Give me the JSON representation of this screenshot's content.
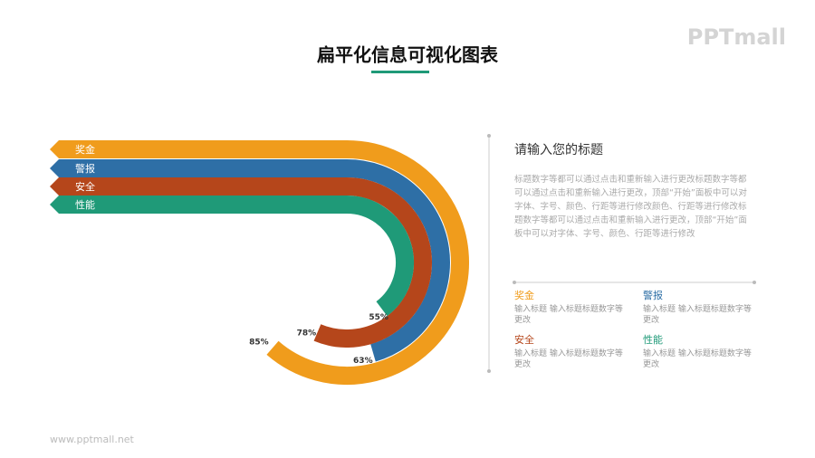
{
  "header": {
    "title": "扁平化信息可视化图表",
    "logo": "PPTmall"
  },
  "chart_data": {
    "type": "radial_bar",
    "categories": [
      "奖金",
      "警报",
      "安全",
      "性能"
    ],
    "values": [
      85,
      63,
      78,
      55
    ],
    "value_labels": [
      "85%",
      "63%",
      "78%",
      "55%"
    ],
    "colors": [
      "#f09c1c",
      "#2e6fa6",
      "#b5461b",
      "#1f9a78"
    ],
    "ylim": [
      0,
      100
    ]
  },
  "panel": {
    "title": "请输入您的标题",
    "body": "标题数字等都可以通过点击和重新输入进行更改标题数字等都可以通过点击和重新输入进行更改，顶部“开始”面板中可以对字体、字号、颜色、行距等进行修改颜色、行距等进行修改标题数字等都可以通过点击和重新输入进行更改，顶部“开始”面板中可以对字体、字号、颜色、行距等进行修改",
    "items": [
      "输入标题 输入标题标题数字等更改",
      "输入标题 输入标题标题数字等更改",
      "输入标题 输入标题标题数字等更改",
      "输入标题 输入标题标题数字等更改"
    ]
  },
  "footer": "www.pptmall.net"
}
